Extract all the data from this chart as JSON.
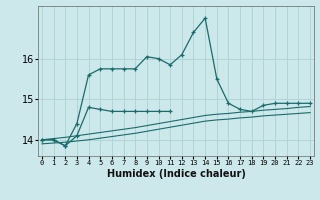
{
  "xlabel": "Humidex (Indice chaleur)",
  "bg_color": "#cce8ea",
  "grid_color": "#b0d4d8",
  "line_color": "#1a6b6b",
  "x_values": [
    0,
    1,
    2,
    3,
    4,
    5,
    6,
    7,
    8,
    9,
    10,
    11,
    12,
    13,
    14,
    15,
    16,
    17,
    18,
    19,
    20,
    21,
    22,
    23
  ],
  "series1": [
    14.0,
    14.0,
    13.85,
    14.1,
    14.8,
    14.75,
    14.7,
    14.7,
    14.7,
    14.7,
    14.7,
    14.7,
    null,
    null,
    null,
    null,
    null,
    null,
    null,
    null,
    null,
    null,
    null,
    null
  ],
  "series2": [
    14.0,
    14.0,
    13.85,
    14.4,
    15.6,
    15.75,
    15.75,
    15.75,
    15.75,
    16.05,
    16.0,
    15.85,
    16.1,
    16.65,
    17.0,
    15.5,
    14.9,
    14.75,
    14.7,
    14.85,
    14.9,
    14.9,
    14.9,
    14.9
  ],
  "series3": [
    14.0,
    14.03,
    14.06,
    14.1,
    14.14,
    14.18,
    14.22,
    14.26,
    14.3,
    14.35,
    14.4,
    14.45,
    14.5,
    14.55,
    14.6,
    14.63,
    14.65,
    14.68,
    14.7,
    14.73,
    14.75,
    14.77,
    14.8,
    14.82
  ],
  "series4": [
    13.9,
    13.92,
    13.94,
    13.97,
    14.0,
    14.04,
    14.08,
    14.12,
    14.16,
    14.21,
    14.26,
    14.31,
    14.36,
    14.41,
    14.46,
    14.49,
    14.51,
    14.54,
    14.56,
    14.59,
    14.61,
    14.63,
    14.65,
    14.67
  ],
  "ylim": [
    13.6,
    17.3
  ],
  "yticks": [
    14,
    15,
    16
  ],
  "xlim": [
    -0.3,
    23.3
  ]
}
